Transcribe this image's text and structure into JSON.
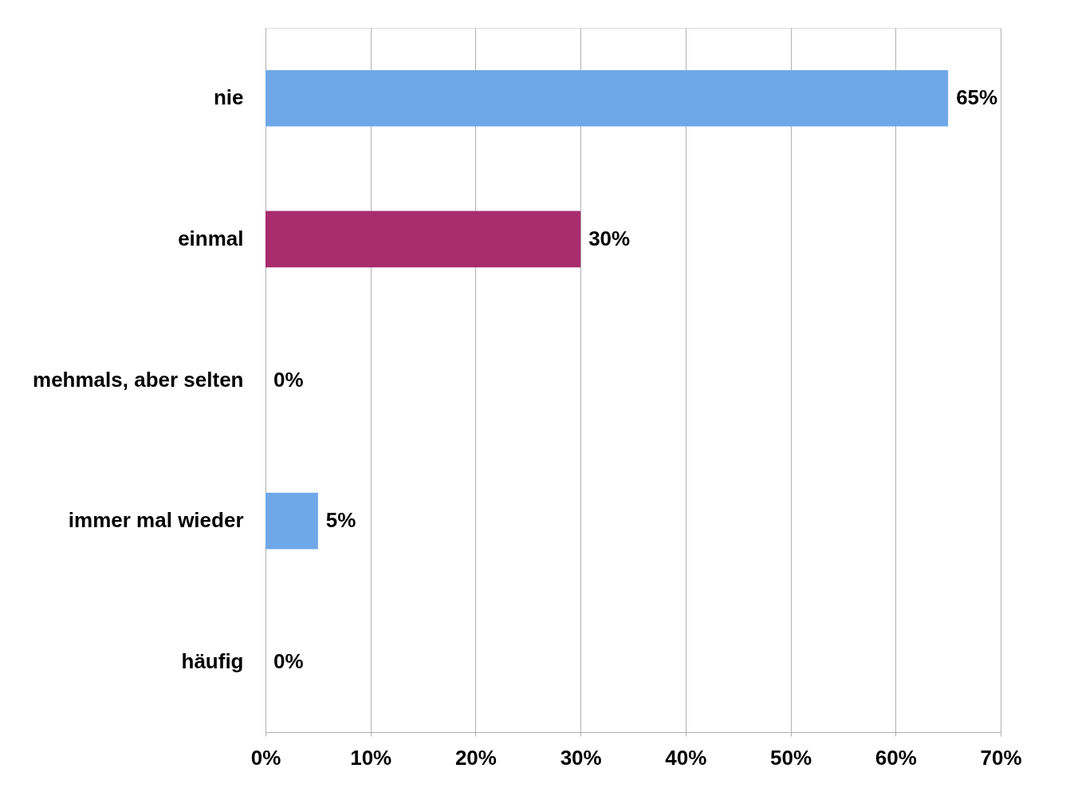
{
  "chart_data": {
    "type": "bar",
    "orientation": "horizontal",
    "categories": [
      "nie",
      "einmal",
      "mehmals, aber selten",
      "immer mal wieder",
      "häufig"
    ],
    "values": [
      65,
      30,
      0,
      5,
      0
    ],
    "colors": [
      "#6fa8e8",
      "#a82c6e",
      "#6fa8e8",
      "#6fa8e8",
      "#6fa8e8"
    ],
    "value_labels": [
      "65%",
      "30%",
      "0%",
      "5%",
      "0%"
    ],
    "xlim": [
      0,
      70
    ],
    "xticks": [
      {
        "value": 0,
        "label": "0%"
      },
      {
        "value": 10,
        "label": "10%"
      },
      {
        "value": 20,
        "label": "20%"
      },
      {
        "value": 30,
        "label": "30%"
      },
      {
        "value": 40,
        "label": "40%"
      },
      {
        "value": 50,
        "label": "50%"
      },
      {
        "value": 60,
        "label": "60%"
      },
      {
        "value": 70,
        "label": "70%"
      }
    ],
    "grid": "x"
  }
}
